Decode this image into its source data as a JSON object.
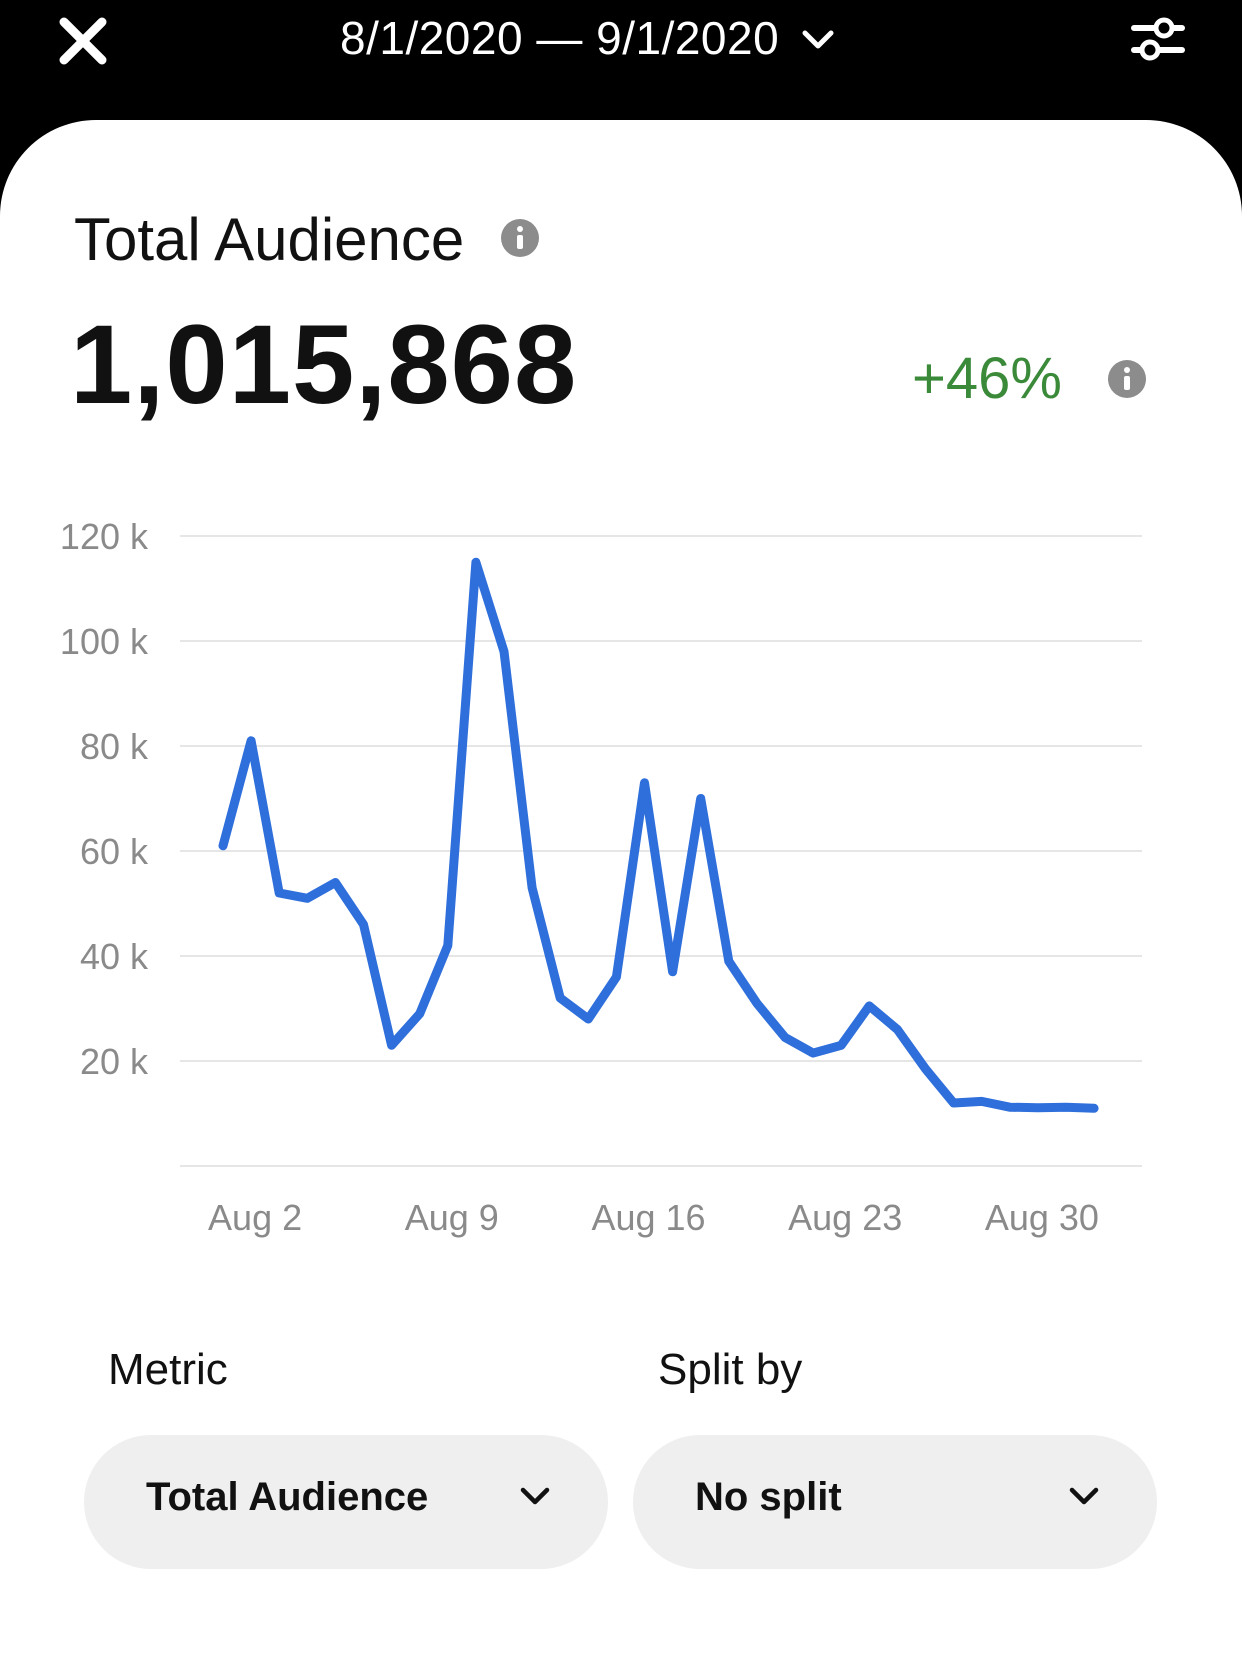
{
  "header": {
    "date_range": "8/1/2020 — 9/1/2020"
  },
  "summary": {
    "title": "Total Audience",
    "value": "1,015,868",
    "change": "+46%"
  },
  "chart_data": {
    "type": "line",
    "title": "Total Audience",
    "x": [
      "Aug 1",
      "Aug 2",
      "Aug 3",
      "Aug 4",
      "Aug 5",
      "Aug 6",
      "Aug 7",
      "Aug 8",
      "Aug 9",
      "Aug 10",
      "Aug 11",
      "Aug 12",
      "Aug 13",
      "Aug 14",
      "Aug 15",
      "Aug 16",
      "Aug 17",
      "Aug 18",
      "Aug 19",
      "Aug 20",
      "Aug 21",
      "Aug 22",
      "Aug 23",
      "Aug 24",
      "Aug 25",
      "Aug 26",
      "Aug 27",
      "Aug 28",
      "Aug 29",
      "Aug 30",
      "Aug 31",
      "Sep 1"
    ],
    "series": [
      {
        "name": "Total Audience",
        "values": [
          61000,
          81000,
          52000,
          51000,
          54000,
          46000,
          23000,
          29000,
          42000,
          115000,
          98000,
          53000,
          32000,
          28000,
          36000,
          73000,
          37000,
          70000,
          39000,
          31000,
          24500,
          21500,
          23000,
          30500,
          26000,
          18500,
          12000,
          12300,
          11200,
          11100,
          11200,
          11000
        ]
      }
    ],
    "x_tick_labels": [
      "Aug 2",
      "Aug 9",
      "Aug 16",
      "Aug 23",
      "Aug 30"
    ],
    "x_tick_indices": [
      1,
      8,
      15,
      22,
      29
    ],
    "y_ticks": [
      20000,
      40000,
      60000,
      80000,
      100000,
      120000
    ],
    "y_tick_labels": [
      "20 k",
      "40 k",
      "60 k",
      "80 k",
      "100 k",
      "120 k"
    ],
    "ylim": [
      0,
      120000
    ],
    "xlabel": "",
    "ylabel": "",
    "grid": true,
    "line_color": "#2f6fdb"
  },
  "controls": {
    "metric_label": "Metric",
    "metric_value": "Total Audience",
    "split_label": "Split by",
    "split_value": "No split"
  },
  "colors": {
    "positive": "#3a8a3a",
    "line": "#2f6fdb",
    "grid": "#e6e6e6",
    "tick_text": "#8a8a8a"
  }
}
